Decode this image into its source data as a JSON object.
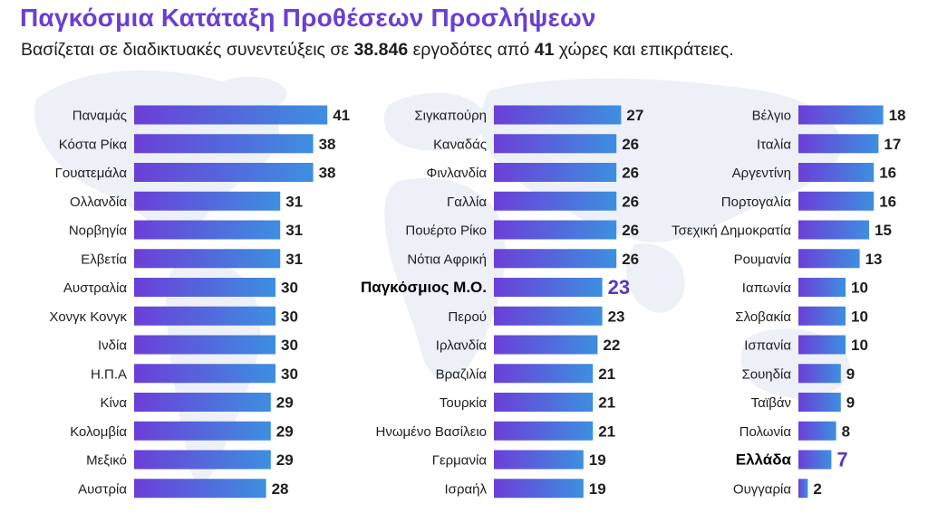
{
  "header": {
    "title": "Παγκόσμια Κατάταξη Προθέσεων Προσλήψεων",
    "subtitle_pre": "Βασίζεται σε διαδικτυακές συνεντεύξεις σε ",
    "subtitle_employers": "38.846",
    "subtitle_mid": " εργοδότες από ",
    "subtitle_countries": "41",
    "subtitle_post": " χώρες και επικράτειες."
  },
  "colors": {
    "bar_start": "#6b3fd8",
    "bar_end": "#3d8fe0",
    "highlight_text": "#5a35c8",
    "map": "#eef0f8"
  },
  "chart_data": {
    "type": "bar",
    "orientation": "horizontal",
    "title": "Παγκόσμια Κατάταξη Προθέσεων Προσλήψεων",
    "columns": [
      {
        "items": [
          {
            "label": "Παναμάς",
            "value": 41
          },
          {
            "label": "Κόστα Ρίκα",
            "value": 38
          },
          {
            "label": "Γουατεμάλα",
            "value": 38
          },
          {
            "label": "Ολλανδία",
            "value": 31
          },
          {
            "label": "Νορβηγία",
            "value": 31
          },
          {
            "label": "Ελβετία",
            "value": 31
          },
          {
            "label": "Αυστραλία",
            "value": 30
          },
          {
            "label": "Χονγκ Κονγκ",
            "value": 30
          },
          {
            "label": "Ινδία",
            "value": 30
          },
          {
            "label": "Η.Π.Α",
            "value": 30
          },
          {
            "label": "Κίνα",
            "value": 29
          },
          {
            "label": "Κολομβία",
            "value": 29
          },
          {
            "label": "Μεξικό",
            "value": 29
          },
          {
            "label": "Αυστρία",
            "value": 28
          }
        ]
      },
      {
        "items": [
          {
            "label": "Σιγκαπούρη",
            "value": 27
          },
          {
            "label": "Καναδάς",
            "value": 26
          },
          {
            "label": "Φινλανδία",
            "value": 26
          },
          {
            "label": "Γαλλία",
            "value": 26
          },
          {
            "label": "Πουέρτο Ρίκο",
            "value": 26
          },
          {
            "label": "Νότια Αφρική",
            "value": 26
          },
          {
            "label": "Παγκόσμιος Μ.Ο.",
            "value": 23,
            "highlight": true
          },
          {
            "label": "Περού",
            "value": 23
          },
          {
            "label": "Ιρλανδία",
            "value": 22
          },
          {
            "label": "Βραζιλία",
            "value": 21
          },
          {
            "label": "Τουρκία",
            "value": 21
          },
          {
            "label": "Ηνωμένο Βασίλειο",
            "value": 21
          },
          {
            "label": "Γερμανία",
            "value": 19
          },
          {
            "label": "Ισραήλ",
            "value": 19
          }
        ]
      },
      {
        "items": [
          {
            "label": "Βέλγιο",
            "value": 18
          },
          {
            "label": "Ιταλία",
            "value": 17
          },
          {
            "label": "Αργεντίνη",
            "value": 16
          },
          {
            "label": "Πορτογαλία",
            "value": 16
          },
          {
            "label": "Τσεχική Δημοκρατία",
            "value": 15
          },
          {
            "label": "Ρουμανία",
            "value": 13
          },
          {
            "label": "Ιαπωνία",
            "value": 10
          },
          {
            "label": "Σλοβακία",
            "value": 10
          },
          {
            "label": "Ισπανία",
            "value": 10
          },
          {
            "label": "Σουηδία",
            "value": 9
          },
          {
            "label": "Ταϊβάν",
            "value": 9
          },
          {
            "label": "Πολωνία",
            "value": 8
          },
          {
            "label": "Ελλάδα",
            "value": 7,
            "highlight": true
          },
          {
            "label": "Ουγγαρία",
            "value": 2
          }
        ]
      }
    ]
  }
}
